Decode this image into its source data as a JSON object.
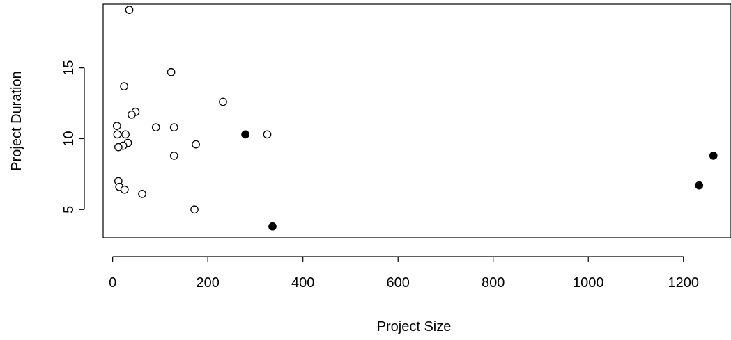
{
  "chart_data": {
    "type": "scatter",
    "xlabel": "Project Size",
    "ylabel": "Project Duration",
    "xlim": [
      -20,
      1300
    ],
    "ylim": [
      3.0,
      19.5
    ],
    "x_ticks": [
      0,
      200,
      400,
      600,
      800,
      1000,
      1200
    ],
    "y_ticks": [
      5,
      10,
      15
    ],
    "grid": false,
    "series": [
      {
        "marker": "open-circle",
        "color": "#000000",
        "points": [
          {
            "x": 35,
            "y": 19.1
          },
          {
            "x": 123,
            "y": 14.7
          },
          {
            "x": 24,
            "y": 13.7
          },
          {
            "x": 232,
            "y": 12.6
          },
          {
            "x": 48,
            "y": 11.9
          },
          {
            "x": 40,
            "y": 11.7
          },
          {
            "x": 9,
            "y": 10.9
          },
          {
            "x": 91,
            "y": 10.8
          },
          {
            "x": 129,
            "y": 10.8
          },
          {
            "x": 10,
            "y": 10.3
          },
          {
            "x": 27,
            "y": 10.3
          },
          {
            "x": 325,
            "y": 10.3
          },
          {
            "x": 32,
            "y": 9.7
          },
          {
            "x": 175,
            "y": 9.6
          },
          {
            "x": 22,
            "y": 9.5
          },
          {
            "x": 12,
            "y": 9.4
          },
          {
            "x": 129,
            "y": 8.8
          },
          {
            "x": 12,
            "y": 7.0
          },
          {
            "x": 14,
            "y": 6.6
          },
          {
            "x": 25,
            "y": 6.4
          },
          {
            "x": 62,
            "y": 6.1
          },
          {
            "x": 172,
            "y": 5.0
          }
        ]
      },
      {
        "marker": "filled-circle",
        "color": "#000000",
        "points": [
          {
            "x": 279,
            "y": 10.3
          },
          {
            "x": 336,
            "y": 3.8
          },
          {
            "x": 1233,
            "y": 6.7
          },
          {
            "x": 1263,
            "y": 8.8
          }
        ]
      }
    ]
  }
}
